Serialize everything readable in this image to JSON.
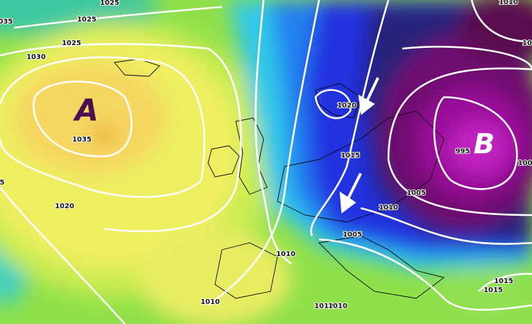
{
  "map": {
    "centers": [
      "A",
      "B"
    ],
    "isobar_labels": [
      "1025",
      "035",
      "1025",
      "1025",
      "1030",
      "1035",
      "1020",
      "5",
      "1020",
      "1015",
      "995",
      "1005",
      "1010",
      "1005",
      "1010",
      "1010",
      "1010",
      "1010",
      "1010",
      "1015",
      "1015",
      "100",
      "10"
    ]
  }
}
